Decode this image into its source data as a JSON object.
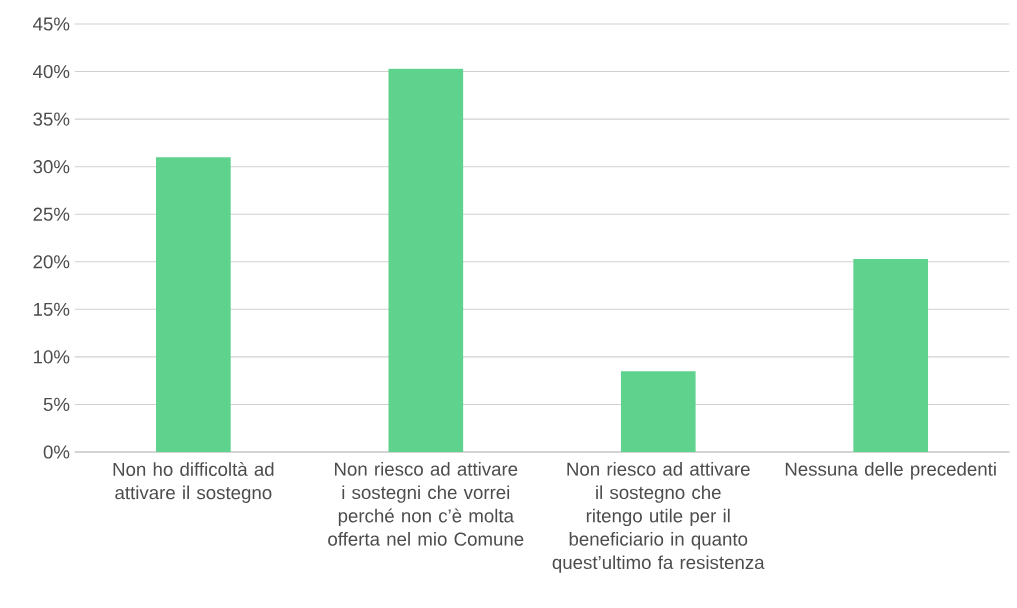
{
  "chart_data": {
    "type": "bar",
    "categories": [
      "Non ho difficoltà ad attivare il sostegno",
      "Non riesco ad attivare i sostegni che vorrei perché non c’è molta offerta nel mio Comune",
      "Non riesco ad attivare il sostegno che ritengo utile per il beneficiario in quanto quest’ultimo fa resistenza",
      "Nessuna delle precedenti"
    ],
    "values": [
      31.0,
      40.3,
      8.5,
      20.3
    ],
    "color": "#5fd38d",
    "ylim": [
      0,
      45
    ],
    "yticks": [
      {
        "value": 0,
        "label": "0%"
      },
      {
        "value": 5,
        "label": "5%"
      },
      {
        "value": 10,
        "label": "10%"
      },
      {
        "value": 15,
        "label": "15%"
      },
      {
        "value": 20,
        "label": "20%"
      },
      {
        "value": 25,
        "label": "25%"
      },
      {
        "value": 30,
        "label": "30%"
      },
      {
        "value": 35,
        "label": "35%"
      },
      {
        "value": 40,
        "label": "40%"
      },
      {
        "value": 45,
        "label": "45%"
      }
    ],
    "grid": "y"
  }
}
